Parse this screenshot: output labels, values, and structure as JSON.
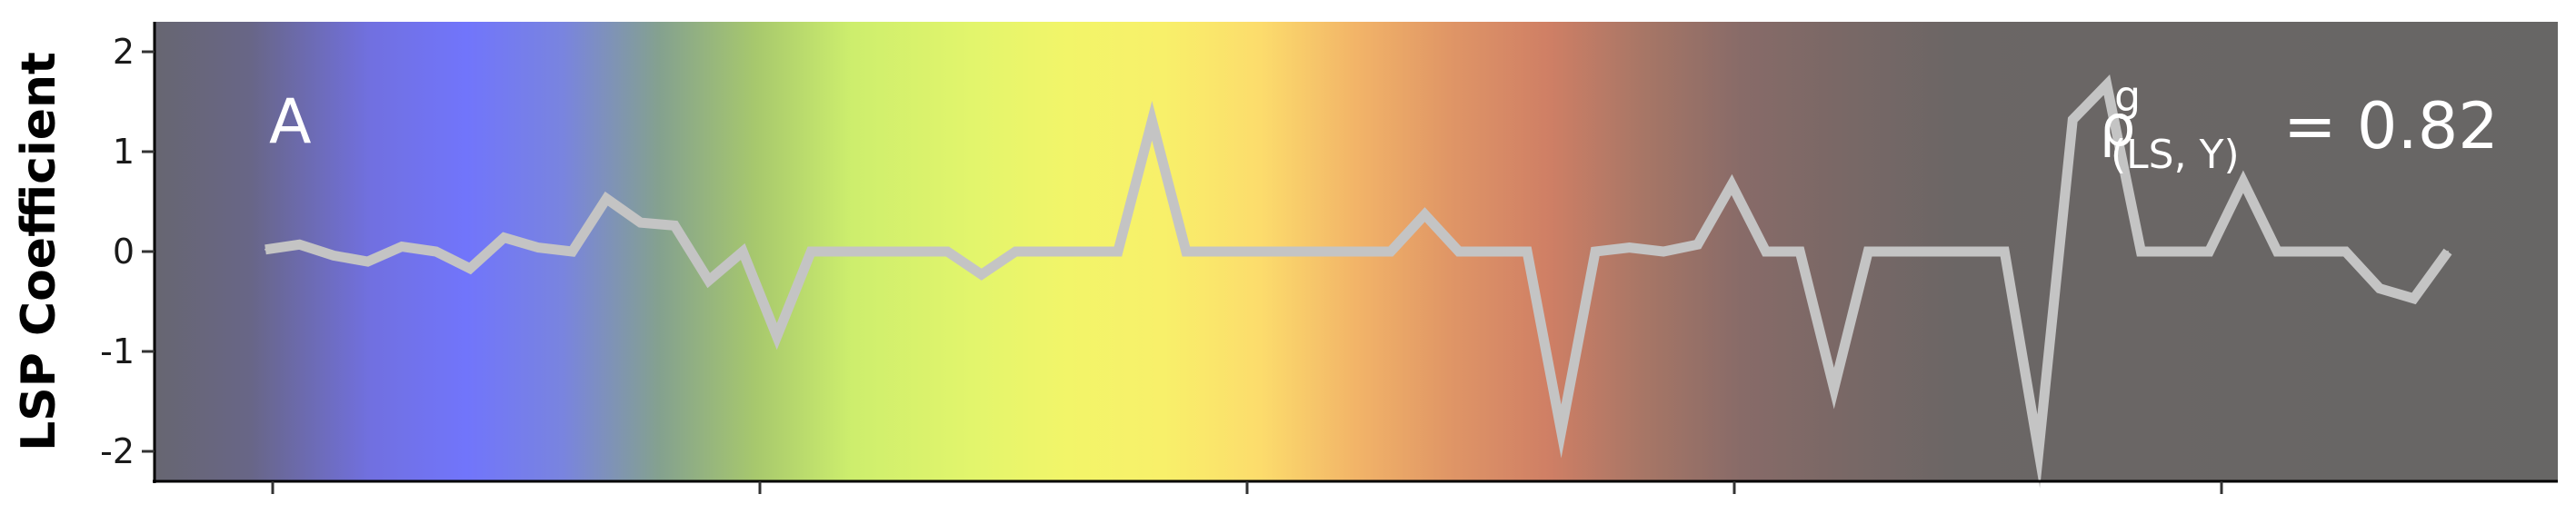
{
  "chart_data": {
    "type": "line",
    "panel_label": "A",
    "ylabel": "LSP Coefficient",
    "ylim": [
      -2.3,
      2.3
    ],
    "yticks": [
      2,
      1,
      0,
      -1,
      -2
    ],
    "ytick_labels": [
      "2",
      "1",
      "0",
      "-1",
      "-2"
    ],
    "xtick_count": 5,
    "background_gradient": [
      {
        "pos": 0.0,
        "color": "#676671"
      },
      {
        "pos": 0.04,
        "color": "#686687"
      },
      {
        "pos": 0.09,
        "color": "#7170e0"
      },
      {
        "pos": 0.13,
        "color": "#7175fb"
      },
      {
        "pos": 0.17,
        "color": "#7984df"
      },
      {
        "pos": 0.21,
        "color": "#84a18f"
      },
      {
        "pos": 0.25,
        "color": "#a7c86d"
      },
      {
        "pos": 0.29,
        "color": "#cdee6d"
      },
      {
        "pos": 0.34,
        "color": "#e2f56c"
      },
      {
        "pos": 0.38,
        "color": "#f2f569"
      },
      {
        "pos": 0.42,
        "color": "#f8f06a"
      },
      {
        "pos": 0.46,
        "color": "#fcdc6c"
      },
      {
        "pos": 0.5,
        "color": "#f2b468"
      },
      {
        "pos": 0.54,
        "color": "#df9566"
      },
      {
        "pos": 0.58,
        "color": "#cf7f65"
      },
      {
        "pos": 0.62,
        "color": "#a77666"
      },
      {
        "pos": 0.66,
        "color": "#886b68"
      },
      {
        "pos": 0.7,
        "color": "#7a6866"
      },
      {
        "pos": 0.75,
        "color": "#6b6665"
      },
      {
        "pos": 1.0,
        "color": "#676665"
      }
    ],
    "line_color": "#c4c4c4",
    "annotation": {
      "rho": "ρ",
      "superscript": "g",
      "subscript": "(LS, Y)",
      "value_text": "= 0.82"
    },
    "series": [
      {
        "values": [
          0.02,
          0.07,
          -0.04,
          -0.1,
          0.05,
          0.0,
          -0.17,
          0.14,
          0.04,
          0.0,
          0.53,
          0.29,
          0.26,
          -0.29,
          0.0,
          -0.85,
          0.0,
          0.0,
          0.0,
          0.0,
          0.0,
          -0.23,
          0.0,
          0.0,
          0.0,
          0.0,
          1.31,
          0.0,
          0.0,
          0.0,
          0.0,
          0.0,
          0.0,
          0.0,
          0.37,
          0.0,
          0.0,
          0.0,
          -1.8,
          0.0,
          0.04,
          0.0,
          0.07,
          0.67,
          0.0,
          0.0,
          -1.37,
          0.0,
          0.0,
          0.0,
          0.0,
          0.0,
          -2.0,
          1.32,
          1.67,
          0.0,
          0.0,
          0.0,
          0.7,
          0.0,
          0.0,
          0.0,
          -0.37,
          -0.47,
          0.0
        ]
      }
    ]
  }
}
